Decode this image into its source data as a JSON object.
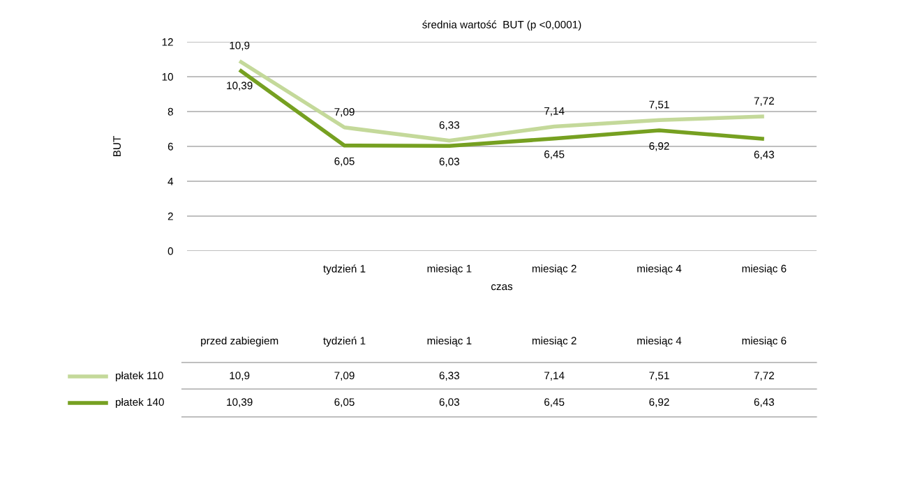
{
  "chart_data": {
    "type": "line",
    "title": "średnia wartość  BUT (p <0,0001)",
    "xlabel": "czas",
    "ylabel": "BUT",
    "categories": [
      null,
      "tydzień 1",
      "miesiąc 1",
      "miesiąc 2",
      "miesiąc 4",
      "miesiąc 6"
    ],
    "series": [
      {
        "name": "płatek 110",
        "color": "#c4d99a",
        "values": [
          10.9,
          7.09,
          6.33,
          7.14,
          7.51,
          7.72
        ],
        "value_labels": [
          "10,9",
          "7,09",
          "6,33",
          "7,14",
          "7,51",
          "7,72"
        ]
      },
      {
        "name": "płatek 140",
        "color": "#76a021",
        "values": [
          10.39,
          6.05,
          6.03,
          6.45,
          6.92,
          6.43
        ],
        "value_labels": [
          "10,39",
          "6,05",
          "6,03",
          "6,45",
          "6,92",
          "6,43"
        ]
      }
    ],
    "ylim": [
      0,
      12
    ],
    "yticks": [
      0,
      2,
      4,
      6,
      8,
      10,
      12
    ],
    "grid": "y",
    "legend": "bottom left",
    "marker": "none",
    "line_style": "solid",
    "annotations": [
      "przed zabiegiem"
    ]
  }
}
